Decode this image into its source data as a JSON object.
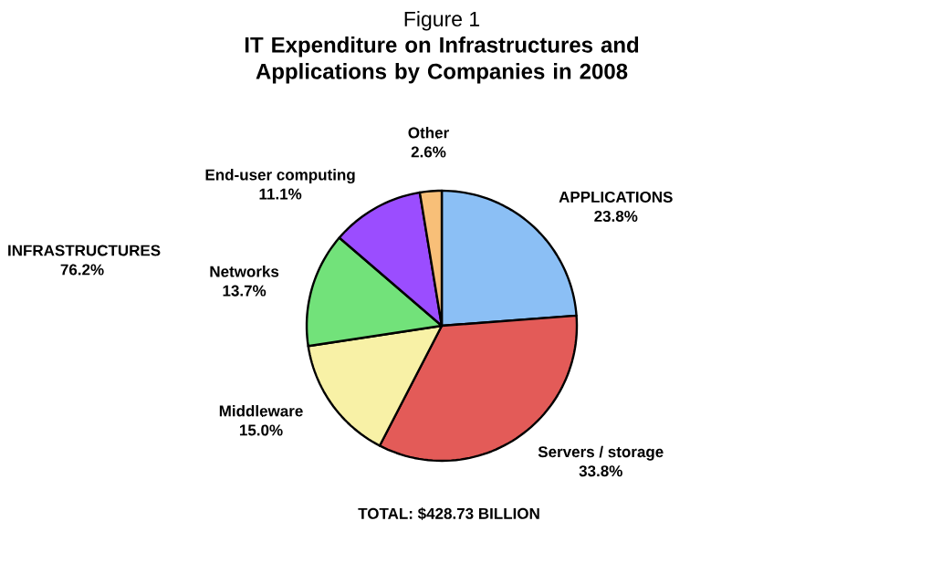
{
  "chart_data": {
    "type": "pie",
    "title": "Figure 1",
    "subtitle": "IT Expenditure on Infrastructures and Applications by Companies in 2008",
    "categories": [
      "APPLICATIONS",
      "Servers / storage",
      "Middleware",
      "Networks",
      "End-user computing",
      "Other"
    ],
    "values": [
      23.8,
      33.8,
      15.0,
      13.7,
      11.1,
      2.6
    ],
    "value_labels": [
      "23.8%",
      "33.8%",
      "15.0%",
      "13.7%",
      "11.1%",
      "2.6%"
    ],
    "colors": [
      "#8bbff5",
      "#e35b58",
      "#f8f1a6",
      "#72e27a",
      "#9b4dff",
      "#f8bf78"
    ],
    "annotations": [
      "INFRASTRUCTURES 76.2%",
      "TOTAL: $428.73 BILLION"
    ]
  }
}
